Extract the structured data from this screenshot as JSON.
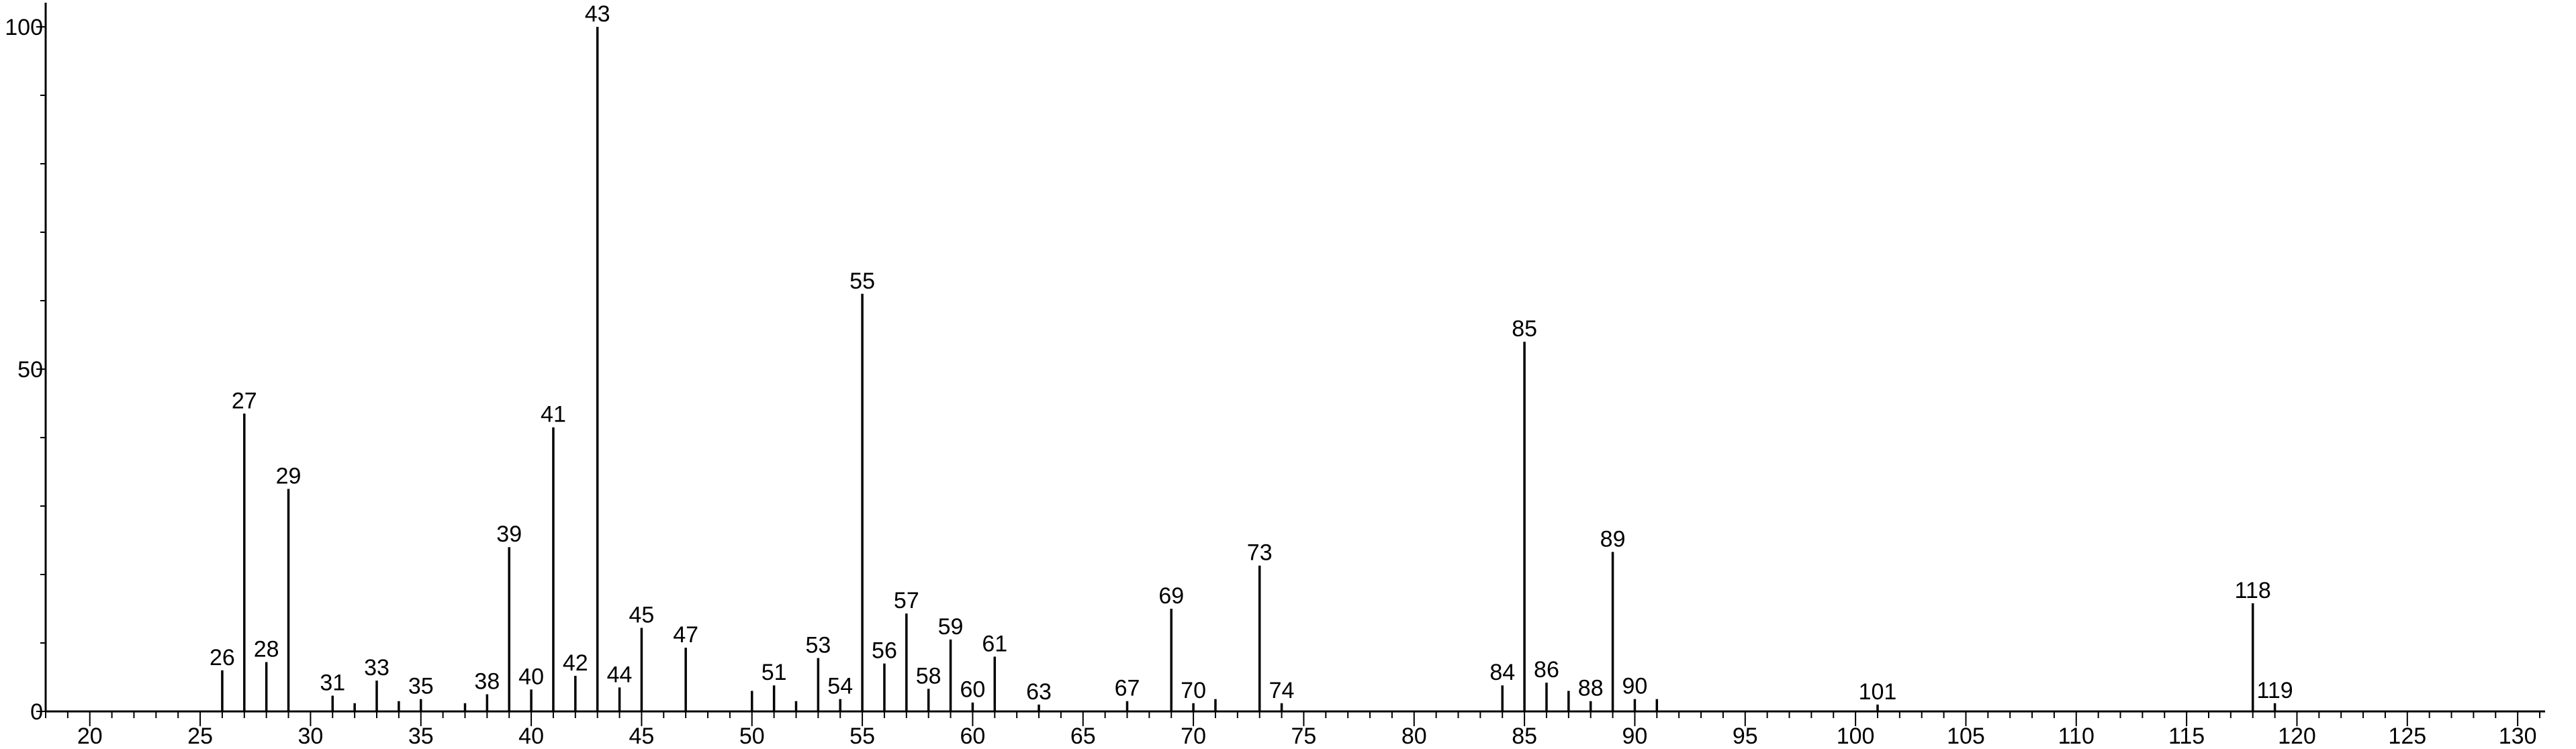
{
  "chart_data": {
    "type": "bar",
    "title": "",
    "xlabel": "",
    "ylabel": "",
    "xlim": [
      18,
      131
    ],
    "ylim": [
      0,
      100
    ],
    "x_ticks_labeled": [
      20,
      25,
      30,
      35,
      40,
      45,
      50,
      55,
      60,
      65,
      70,
      75,
      80,
      85,
      90,
      95,
      100,
      105,
      110,
      115,
      120,
      125,
      130
    ],
    "y_ticks_labeled": [
      0,
      50,
      100
    ],
    "grid": false,
    "legend": "none",
    "peaks": [
      {
        "mz": 26,
        "intensity": 6,
        "label": "26"
      },
      {
        "mz": 27,
        "intensity": 43.5,
        "label": "27"
      },
      {
        "mz": 28,
        "intensity": 7.2,
        "label": "28"
      },
      {
        "mz": 29,
        "intensity": 32.5,
        "label": "29"
      },
      {
        "mz": 31,
        "intensity": 2.3,
        "label": "31"
      },
      {
        "mz": 32,
        "intensity": 1.2,
        "label": ""
      },
      {
        "mz": 33,
        "intensity": 4.5,
        "label": "33"
      },
      {
        "mz": 34,
        "intensity": 1.5,
        "label": ""
      },
      {
        "mz": 35,
        "intensity": 1.8,
        "label": "35"
      },
      {
        "mz": 37,
        "intensity": 1.2,
        "label": ""
      },
      {
        "mz": 38,
        "intensity": 2.5,
        "label": "38"
      },
      {
        "mz": 39,
        "intensity": 24,
        "label": "39"
      },
      {
        "mz": 40,
        "intensity": 3.2,
        "label": "40"
      },
      {
        "mz": 41,
        "intensity": 41.5,
        "label": "41"
      },
      {
        "mz": 42,
        "intensity": 5.2,
        "label": "42"
      },
      {
        "mz": 43,
        "intensity": 100,
        "label": "43"
      },
      {
        "mz": 44,
        "intensity": 3.5,
        "label": "44"
      },
      {
        "mz": 45,
        "intensity": 12.2,
        "label": "45"
      },
      {
        "mz": 47,
        "intensity": 9.3,
        "label": "47"
      },
      {
        "mz": 50,
        "intensity": 3,
        "label": ""
      },
      {
        "mz": 51,
        "intensity": 3.8,
        "label": "51"
      },
      {
        "mz": 52,
        "intensity": 1.5,
        "label": ""
      },
      {
        "mz": 53,
        "intensity": 7.8,
        "label": "53"
      },
      {
        "mz": 54,
        "intensity": 1.8,
        "label": "54"
      },
      {
        "mz": 55,
        "intensity": 61,
        "label": "55"
      },
      {
        "mz": 56,
        "intensity": 7,
        "label": "56"
      },
      {
        "mz": 57,
        "intensity": 14.3,
        "label": "57"
      },
      {
        "mz": 58,
        "intensity": 3.3,
        "label": "58"
      },
      {
        "mz": 59,
        "intensity": 10.5,
        "label": "59"
      },
      {
        "mz": 60,
        "intensity": 1.3,
        "label": "60"
      },
      {
        "mz": 61,
        "intensity": 8,
        "label": "61"
      },
      {
        "mz": 63,
        "intensity": 1,
        "label": "63"
      },
      {
        "mz": 67,
        "intensity": 1.5,
        "label": "67"
      },
      {
        "mz": 69,
        "intensity": 15,
        "label": "69"
      },
      {
        "mz": 70,
        "intensity": 1.2,
        "label": "70"
      },
      {
        "mz": 71,
        "intensity": 1.8,
        "label": ""
      },
      {
        "mz": 73,
        "intensity": 21.3,
        "label": "73"
      },
      {
        "mz": 74,
        "intensity": 1.2,
        "label": "74"
      },
      {
        "mz": 84,
        "intensity": 3.8,
        "label": "84"
      },
      {
        "mz": 85,
        "intensity": 54,
        "label": "85"
      },
      {
        "mz": 86,
        "intensity": 4.2,
        "label": "86"
      },
      {
        "mz": 87,
        "intensity": 3,
        "label": ""
      },
      {
        "mz": 88,
        "intensity": 1.5,
        "label": "88"
      },
      {
        "mz": 89,
        "intensity": 23.3,
        "label": "89"
      },
      {
        "mz": 90,
        "intensity": 1.8,
        "label": "90"
      },
      {
        "mz": 91,
        "intensity": 1.8,
        "label": ""
      },
      {
        "mz": 101,
        "intensity": 1,
        "label": "101"
      },
      {
        "mz": 118,
        "intensity": 15.8,
        "label": "118"
      },
      {
        "mz": 119,
        "intensity": 1.2,
        "label": "119"
      }
    ]
  }
}
